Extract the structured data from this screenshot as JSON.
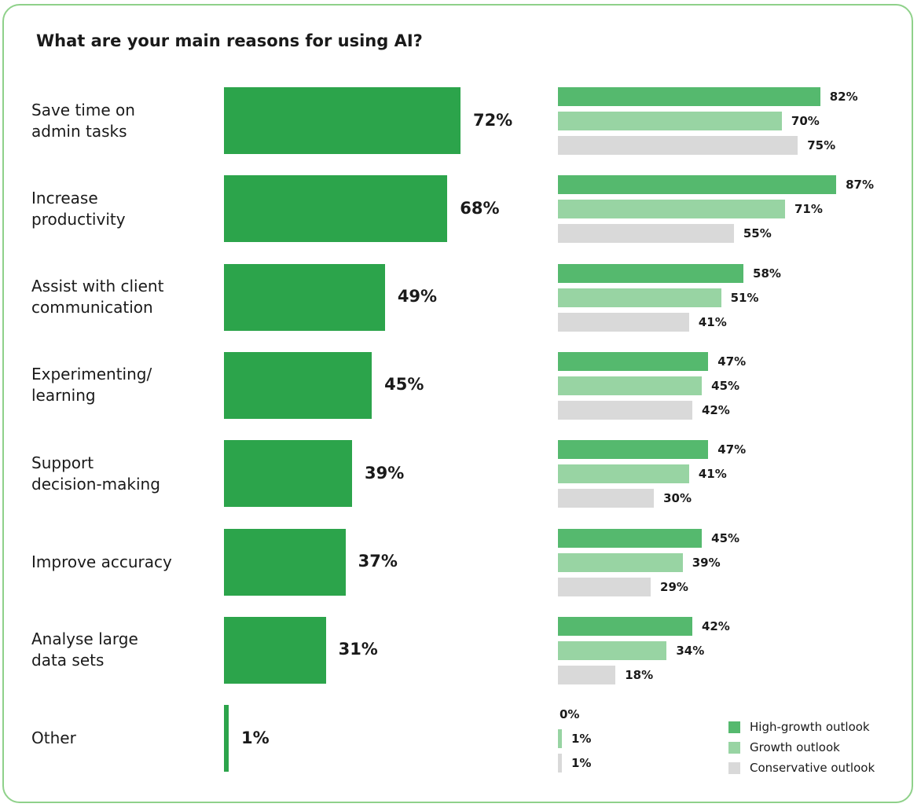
{
  "title": "What are your main reasons for using AI?",
  "colors": {
    "overall": "#2ca44b",
    "high_growth": "#55b96e",
    "growth": "#98d4a3",
    "conservative": "#d9d9d9"
  },
  "chart_data": {
    "type": "bar",
    "orientation": "horizontal",
    "title": "What are your main reasons for using AI?",
    "unit": "%",
    "categories": [
      "Save time on admin tasks",
      "Increase productivity",
      "Assist with client communication",
      "Experimenting/ learning",
      "Support decision-making",
      "Improve accuracy",
      "Analyse large data sets",
      "Other"
    ],
    "category_lines": [
      [
        "Save time on",
        "admin tasks"
      ],
      [
        "Increase",
        "productivity"
      ],
      [
        "Assist with client",
        "communication"
      ],
      [
        "Experimenting/",
        "learning"
      ],
      [
        "Support",
        "decision-making"
      ],
      [
        "Improve accuracy"
      ],
      [
        "Analyse large",
        "data sets"
      ],
      [
        "Other"
      ]
    ],
    "overall": {
      "values": [
        72,
        68,
        49,
        45,
        39,
        37,
        31,
        1
      ],
      "labels": [
        "72%",
        "68%",
        "49%",
        "45%",
        "39%",
        "37%",
        "31%",
        "1%"
      ]
    },
    "series": [
      {
        "name": "High-growth outlook",
        "color": "#55b96e",
        "values": [
          82,
          87,
          58,
          47,
          47,
          45,
          42,
          0
        ],
        "labels": [
          "82%",
          "87%",
          "58%",
          "47%",
          "47%",
          "45%",
          "42%",
          "0%"
        ]
      },
      {
        "name": "Growth outlook",
        "color": "#98d4a3",
        "values": [
          70,
          71,
          51,
          45,
          41,
          39,
          34,
          1
        ],
        "labels": [
          "70%",
          "71%",
          "51%",
          "45%",
          "41%",
          "39%",
          "34%",
          "1%"
        ]
      },
      {
        "name": "Conservative outlook",
        "color": "#d9d9d9",
        "values": [
          75,
          55,
          41,
          42,
          30,
          29,
          18,
          1
        ],
        "labels": [
          "75%",
          "55%",
          "41%",
          "42%",
          "30%",
          "29%",
          "18%",
          "1%"
        ]
      }
    ],
    "legend": "bottom-right",
    "grid": false
  }
}
